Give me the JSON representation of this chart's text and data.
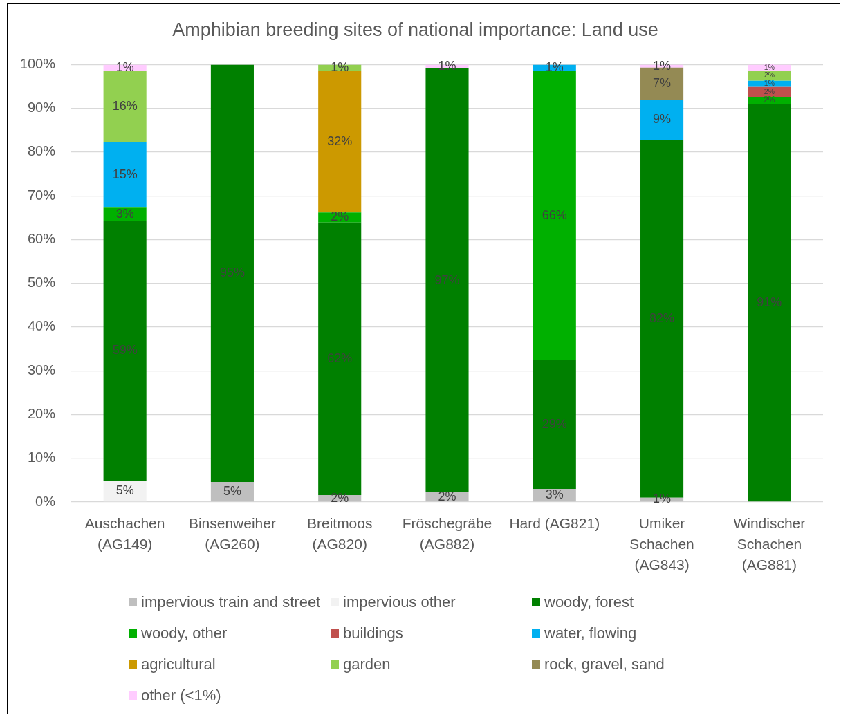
{
  "chart_data": {
    "type": "bar",
    "title": "Amphibian breeding sites of national importance: Land use",
    "categories": [
      "Auschachen (AG149)",
      "Binsenweiher (AG260)",
      "Breitmoos (AG820)",
      "Fröschegräbe (AG882)",
      "Hard (AG821)",
      "Umiker Schachen (AG843)",
      "Windischer Schachen (AG881)"
    ],
    "stacked": true,
    "series": [
      {
        "name": "impervious train and street",
        "color": "#bfbfbf",
        "values": [
          null,
          4.6,
          1.6,
          2.2,
          3.0,
          1.0,
          null
        ],
        "value_labels": [
          null,
          "5%",
          "2%",
          "2%",
          "3%",
          "1%",
          null
        ]
      },
      {
        "name": "impervious other",
        "color": "#f2f2f2",
        "values": [
          4.9,
          null,
          null,
          null,
          null,
          null,
          null
        ],
        "value_labels": [
          "5%",
          null,
          null,
          null,
          null,
          null,
          null
        ]
      },
      {
        "name": "woody, forest",
        "color": "#008000",
        "values": [
          59.3,
          95.4,
          62.3,
          96.9,
          29.4,
          81.8,
          91.0
        ],
        "value_labels": [
          "59%",
          "95%",
          "62%",
          "97%",
          "29%",
          "82%",
          "91%"
        ]
      },
      {
        "name": "woody, other",
        "color": "#00b000",
        "values": [
          3.1,
          null,
          2.3,
          null,
          66.2,
          null,
          1.6
        ],
        "value_labels": [
          "3%",
          null,
          "2%",
          null,
          "66%",
          null,
          "2%"
        ]
      },
      {
        "name": "buildings",
        "color": "#c0504d",
        "values": [
          null,
          null,
          null,
          null,
          null,
          null,
          2.3
        ],
        "value_labels": [
          null,
          null,
          null,
          null,
          null,
          null,
          "2%"
        ]
      },
      {
        "name": "water, flowing",
        "color": "#00b0f0",
        "values": [
          14.9,
          null,
          null,
          null,
          1.4,
          9.1,
          1.4
        ],
        "value_labels": [
          "15%",
          null,
          null,
          null,
          "1%",
          "9%",
          "1%"
        ]
      },
      {
        "name": "agricultural",
        "color": "#cc9900",
        "values": [
          null,
          null,
          32.4,
          null,
          null,
          null,
          null
        ],
        "value_labels": [
          null,
          null,
          "32%",
          null,
          null,
          null,
          null
        ]
      },
      {
        "name": "garden",
        "color": "#92d050",
        "values": [
          16.4,
          null,
          1.4,
          null,
          null,
          null,
          2.3
        ],
        "value_labels": [
          "16%",
          null,
          "1%",
          null,
          null,
          null,
          "2%"
        ]
      },
      {
        "name": "rock, gravel, sand",
        "color": "#948a54",
        "values": [
          null,
          null,
          null,
          null,
          null,
          7.4,
          null
        ],
        "value_labels": [
          null,
          null,
          null,
          null,
          null,
          "7%",
          null
        ]
      },
      {
        "name": "other (<1%)",
        "color": "#ffccff",
        "values": [
          1.4,
          null,
          null,
          0.9,
          null,
          0.7,
          1.4
        ],
        "value_labels": [
          "1%",
          null,
          null,
          "1%",
          null,
          "1%",
          "1%"
        ]
      }
    ],
    "ylim": [
      0,
      100
    ],
    "yticks": [
      {
        "value": 0,
        "label": "0%"
      },
      {
        "value": 10,
        "label": "10%"
      },
      {
        "value": 20,
        "label": "20%"
      },
      {
        "value": 30,
        "label": "30%"
      },
      {
        "value": 40,
        "label": "40%"
      },
      {
        "value": 50,
        "label": "50%"
      },
      {
        "value": 60,
        "label": "60%"
      },
      {
        "value": 70,
        "label": "70%"
      },
      {
        "value": 80,
        "label": "80%"
      },
      {
        "value": 90,
        "label": "90%"
      },
      {
        "value": 100,
        "label": "100%"
      }
    ],
    "grid": "y",
    "legend": "bottom"
  }
}
